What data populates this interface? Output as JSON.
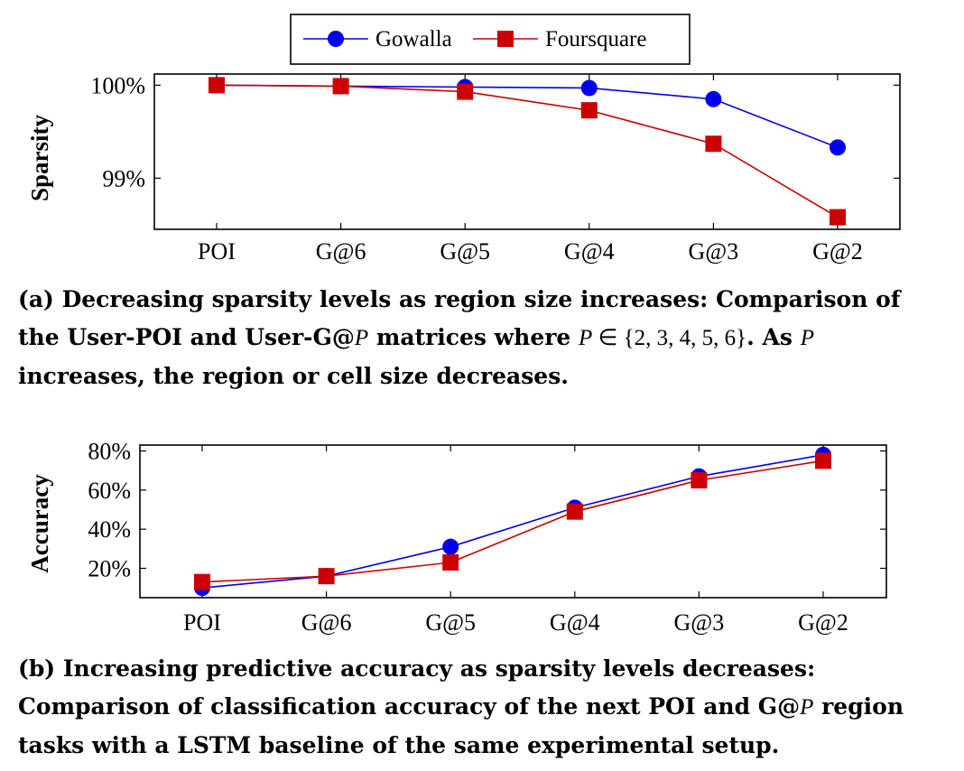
{
  "legend": {
    "entries": [
      {
        "name": "Gowalla",
        "color": "#0000ee",
        "marker": "circle"
      },
      {
        "name": "Foursquare",
        "color": "#cc0000",
        "marker": "square"
      }
    ],
    "placement": "top-center"
  },
  "chart_data": [
    {
      "type": "line",
      "title": "",
      "xlabel": "",
      "ylabel": "Sparsity",
      "categories": [
        "POI",
        "G@6",
        "G@5",
        "G@4",
        "G@3",
        "G@2"
      ],
      "ylim": [
        98.45,
        100.12
      ],
      "yticks": [
        99,
        100
      ],
      "ytick_labels": [
        "99%",
        "100%"
      ],
      "grid": false,
      "series": [
        {
          "name": "Gowalla",
          "color": "#0000ee",
          "marker": "circle",
          "values": [
            100.0,
            99.99,
            99.98,
            99.97,
            99.85,
            99.33
          ]
        },
        {
          "name": "Foursquare",
          "color": "#cc0000",
          "marker": "square",
          "values": [
            100.0,
            99.99,
            99.93,
            99.73,
            99.37,
            98.58
          ]
        }
      ]
    },
    {
      "type": "line",
      "title": "",
      "xlabel": "",
      "ylabel": "Accuracy",
      "categories": [
        "POI",
        "G@6",
        "G@5",
        "G@4",
        "G@3",
        "G@2"
      ],
      "ylim": [
        5,
        83
      ],
      "yticks": [
        20,
        40,
        60,
        80
      ],
      "ytick_labels": [
        "20%",
        "40%",
        "60%",
        "80%"
      ],
      "grid": false,
      "series": [
        {
          "name": "Gowalla",
          "color": "#0000ee",
          "marker": "circle",
          "values": [
            10,
            16,
            31,
            51,
            67,
            78
          ]
        },
        {
          "name": "Foursquare",
          "color": "#cc0000",
          "marker": "square",
          "values": [
            13,
            16,
            23,
            49,
            65,
            75
          ]
        }
      ]
    }
  ],
  "captions": {
    "a": {
      "label": "(a)",
      "text1": "Decreasing sparsity levels as region size increases: Comparison of the User-POI and User-G@",
      "var1": "P",
      "text2": " matrices where ",
      "var2": "P",
      "math": " ∈ {2, 3, 4, 5, 6}",
      "text3": ". As ",
      "var3": "P",
      "text4": " increases, the region or cell size decreases."
    },
    "b": {
      "label": "(b)",
      "text1": "Increasing predictive accuracy as sparsity levels decreases: Comparison of classification accuracy of the next POI and G@",
      "var1": "P",
      "text2": " region tasks with a LSTM baseline of the same experimental setup."
    }
  }
}
